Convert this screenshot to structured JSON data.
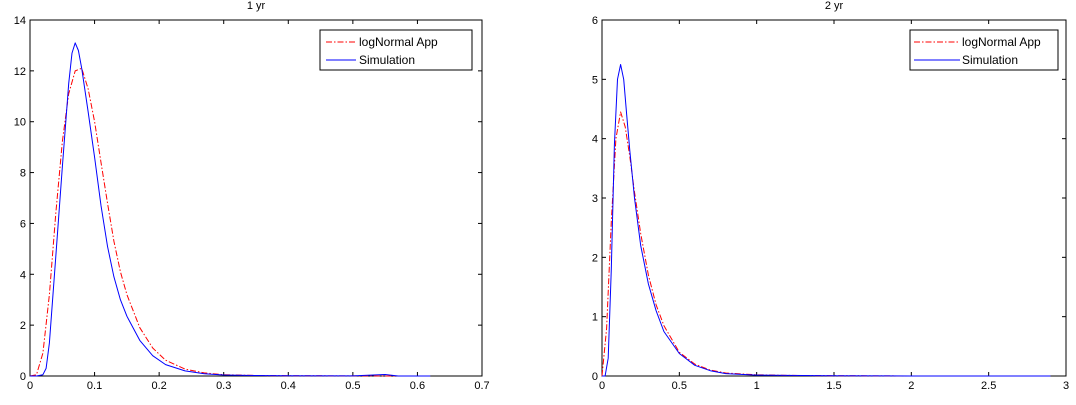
{
  "chart_data": [
    {
      "type": "line",
      "title": "1 yr",
      "xlabel": "",
      "ylabel": "",
      "xlim": [
        0,
        0.7
      ],
      "ylim": [
        0,
        14
      ],
      "xticks": [
        0,
        0.1,
        0.2,
        0.3,
        0.4,
        0.5,
        0.6,
        0.7
      ],
      "xtick_labels": [
        "0",
        "0.1",
        "0.2",
        "0.3",
        "0.4",
        "0.5",
        "0.6",
        "0.7"
      ],
      "yticks": [
        0,
        2,
        4,
        6,
        8,
        10,
        12,
        14
      ],
      "ytick_labels": [
        "0",
        "2",
        "4",
        "6",
        "8",
        "10",
        "12",
        "14"
      ],
      "grid": false,
      "legend_position": "top-right",
      "series": [
        {
          "name": "logNormal App",
          "color": "#ff0000",
          "style": "dash-dot",
          "x": [
            0,
            0.01,
            0.02,
            0.03,
            0.04,
            0.05,
            0.06,
            0.07,
            0.08,
            0.09,
            0.1,
            0.11,
            0.12,
            0.13,
            0.14,
            0.15,
            0.17,
            0.19,
            0.21,
            0.24,
            0.27,
            0.3,
            0.35,
            0.4,
            0.5,
            0.6,
            0.62
          ],
          "y": [
            0,
            0.05,
            0.9,
            3.2,
            6.4,
            9.2,
            11.1,
            12.0,
            12.1,
            11.3,
            10.0,
            8.4,
            6.8,
            5.3,
            4.1,
            3.2,
            1.9,
            1.1,
            0.62,
            0.27,
            0.12,
            0.05,
            0.02,
            0.01,
            0.005,
            0.0,
            0.0
          ]
        },
        {
          "name": "Simulation",
          "color": "#0000ff",
          "style": "solid",
          "x": [
            0,
            0.01,
            0.02,
            0.025,
            0.03,
            0.035,
            0.04,
            0.05,
            0.06,
            0.065,
            0.07,
            0.075,
            0.08,
            0.09,
            0.1,
            0.11,
            0.12,
            0.13,
            0.14,
            0.15,
            0.17,
            0.19,
            0.21,
            0.24,
            0.27,
            0.3,
            0.35,
            0.4,
            0.5,
            0.55,
            0.57,
            0.6,
            0.62
          ],
          "y": [
            0,
            0,
            0.05,
            0.3,
            1.3,
            3.0,
            4.7,
            8.2,
            11.5,
            12.7,
            13.1,
            12.8,
            12.1,
            10.4,
            8.6,
            6.7,
            5.1,
            3.9,
            3.0,
            2.35,
            1.4,
            0.8,
            0.45,
            0.2,
            0.09,
            0.04,
            0.02,
            0.01,
            0.005,
            0.06,
            0.0,
            0.0,
            0.0
          ]
        }
      ]
    },
    {
      "type": "line",
      "title": "2 yr",
      "xlabel": "",
      "ylabel": "",
      "xlim": [
        0,
        3
      ],
      "ylim": [
        0,
        6
      ],
      "xticks": [
        0,
        0.5,
        1,
        1.5,
        2,
        2.5,
        3
      ],
      "xtick_labels": [
        "0",
        "0.5",
        "1",
        "1.5",
        "2",
        "2.5",
        "3"
      ],
      "yticks": [
        0,
        1,
        2,
        3,
        4,
        5,
        6
      ],
      "ytick_labels": [
        "0",
        "1",
        "2",
        "3",
        "4",
        "5",
        "6"
      ],
      "grid": false,
      "legend_position": "top-right",
      "series": [
        {
          "name": "logNormal App",
          "color": "#ff0000",
          "style": "dash-dot",
          "x": [
            0,
            0.03,
            0.06,
            0.09,
            0.12,
            0.15,
            0.18,
            0.21,
            0.25,
            0.3,
            0.35,
            0.4,
            0.5,
            0.6,
            0.7,
            0.8,
            1.0,
            1.2,
            1.5,
            2.0,
            2.5,
            2.9
          ],
          "y": [
            0,
            0.8,
            2.6,
            4.0,
            4.45,
            4.2,
            3.7,
            3.1,
            2.4,
            1.7,
            1.2,
            0.85,
            0.4,
            0.2,
            0.1,
            0.05,
            0.02,
            0.01,
            0.005,
            0.0,
            0.0,
            0.0
          ]
        },
        {
          "name": "Simulation",
          "color": "#0000ff",
          "style": "solid",
          "x": [
            0,
            0.02,
            0.04,
            0.06,
            0.08,
            0.1,
            0.12,
            0.14,
            0.16,
            0.18,
            0.21,
            0.25,
            0.3,
            0.35,
            0.4,
            0.5,
            0.6,
            0.7,
            0.8,
            1.0,
            1.2,
            1.5,
            2.0,
            2.5,
            2.9
          ],
          "y": [
            0,
            0.0,
            0.3,
            1.8,
            3.9,
            5.0,
            5.25,
            5.0,
            4.4,
            3.8,
            3.0,
            2.2,
            1.55,
            1.1,
            0.75,
            0.38,
            0.18,
            0.09,
            0.04,
            0.015,
            0.01,
            0.005,
            0.0,
            0.0,
            0.0
          ]
        }
      ]
    }
  ]
}
